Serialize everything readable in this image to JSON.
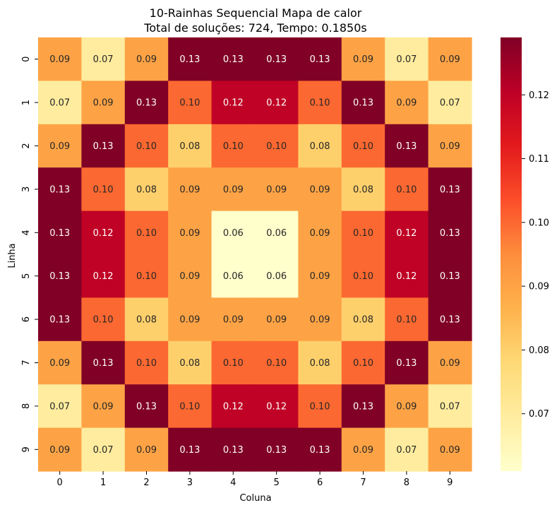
{
  "chart_data": {
    "type": "heatmap",
    "title_line1": "10-Rainhas Sequencial Mapa de calor",
    "title_line2": "Total de soluções: 724, Tempo: 0.1850s",
    "xlabel": "Coluna",
    "ylabel": "Linha",
    "x_categories": [
      "0",
      "1",
      "2",
      "3",
      "4",
      "5",
      "6",
      "7",
      "8",
      "9"
    ],
    "y_categories": [
      "0",
      "1",
      "2",
      "3",
      "4",
      "5",
      "6",
      "7",
      "8",
      "9"
    ],
    "values": [
      [
        0.09,
        0.07,
        0.09,
        0.13,
        0.13,
        0.13,
        0.13,
        0.09,
        0.07,
        0.09
      ],
      [
        0.07,
        0.09,
        0.13,
        0.1,
        0.12,
        0.12,
        0.1,
        0.13,
        0.09,
        0.07
      ],
      [
        0.09,
        0.13,
        0.1,
        0.08,
        0.1,
        0.1,
        0.08,
        0.1,
        0.13,
        0.09
      ],
      [
        0.13,
        0.1,
        0.08,
        0.09,
        0.09,
        0.09,
        0.09,
        0.08,
        0.1,
        0.13
      ],
      [
        0.13,
        0.12,
        0.1,
        0.09,
        0.06,
        0.06,
        0.09,
        0.1,
        0.12,
        0.13
      ],
      [
        0.13,
        0.12,
        0.1,
        0.09,
        0.06,
        0.06,
        0.09,
        0.1,
        0.12,
        0.13
      ],
      [
        0.13,
        0.1,
        0.08,
        0.09,
        0.09,
        0.09,
        0.09,
        0.08,
        0.1,
        0.13
      ],
      [
        0.09,
        0.13,
        0.1,
        0.08,
        0.1,
        0.1,
        0.08,
        0.1,
        0.13,
        0.09
      ],
      [
        0.07,
        0.09,
        0.13,
        0.1,
        0.12,
        0.12,
        0.1,
        0.13,
        0.09,
        0.07
      ],
      [
        0.09,
        0.07,
        0.09,
        0.13,
        0.13,
        0.13,
        0.13,
        0.09,
        0.07,
        0.09
      ]
    ],
    "colormap": "YlOrRd",
    "color_range": [
      0.061,
      0.129
    ],
    "colorbar_ticks": [
      "0.07",
      "0.08",
      "0.09",
      "0.10",
      "0.11",
      "0.12"
    ],
    "annotation_format": "0.00",
    "grid": false,
    "legend": "colorbar-right"
  }
}
